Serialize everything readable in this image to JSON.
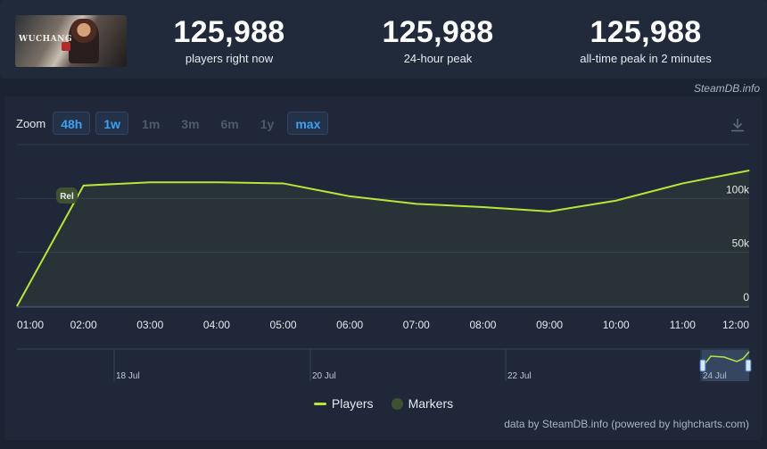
{
  "header": {
    "stats": [
      {
        "value": "125,988",
        "label": "players right now"
      },
      {
        "value": "125,988",
        "label": "24-hour peak"
      },
      {
        "value": "125,988",
        "label": "all-time peak in 2 minutes"
      }
    ],
    "thumb_text": "WUCHANG",
    "credit": "SteamDB.info"
  },
  "zoom": {
    "label": "Zoom",
    "buttons": [
      {
        "label": "48h",
        "active": true
      },
      {
        "label": "1w",
        "active": true
      },
      {
        "label": "1m",
        "active": false
      },
      {
        "label": "3m",
        "active": false
      },
      {
        "label": "6m",
        "active": false
      },
      {
        "label": "1y",
        "active": false
      },
      {
        "label": "max",
        "active": true
      }
    ]
  },
  "chart_data": {
    "type": "line",
    "series": [
      {
        "name": "Players",
        "color": "#b6e63a",
        "x": [
          "01:00",
          "02:00",
          "03:00",
          "04:00",
          "05:00",
          "06:00",
          "07:00",
          "08:00",
          "09:00",
          "10:00",
          "11:00",
          "12:00"
        ],
        "values": [
          0,
          112000,
          115000,
          115000,
          114000,
          102000,
          95000,
          92000,
          88000,
          98000,
          114000,
          126000
        ]
      }
    ],
    "x_ticks": [
      "01:00",
      "02:00",
      "03:00",
      "04:00",
      "05:00",
      "06:00",
      "07:00",
      "08:00",
      "09:00",
      "10:00",
      "11:00",
      "12:00"
    ],
    "y_ticks": [
      {
        "value": 0,
        "label": "0"
      },
      {
        "value": 50000,
        "label": "50k"
      },
      {
        "value": 100000,
        "label": "100k"
      }
    ],
    "ylim": [
      0,
      150000
    ],
    "grid": true,
    "markers": [
      {
        "label": "Rel",
        "x": "01:45"
      }
    ],
    "navigator": {
      "labels": [
        "18 Jul",
        "20 Jul",
        "22 Jul",
        "24 Jul"
      ]
    },
    "legend": {
      "items": [
        "Players",
        "Markers"
      ],
      "position": "bottom"
    },
    "footer": "data by SteamDB.info (powered by highcharts.com)"
  }
}
